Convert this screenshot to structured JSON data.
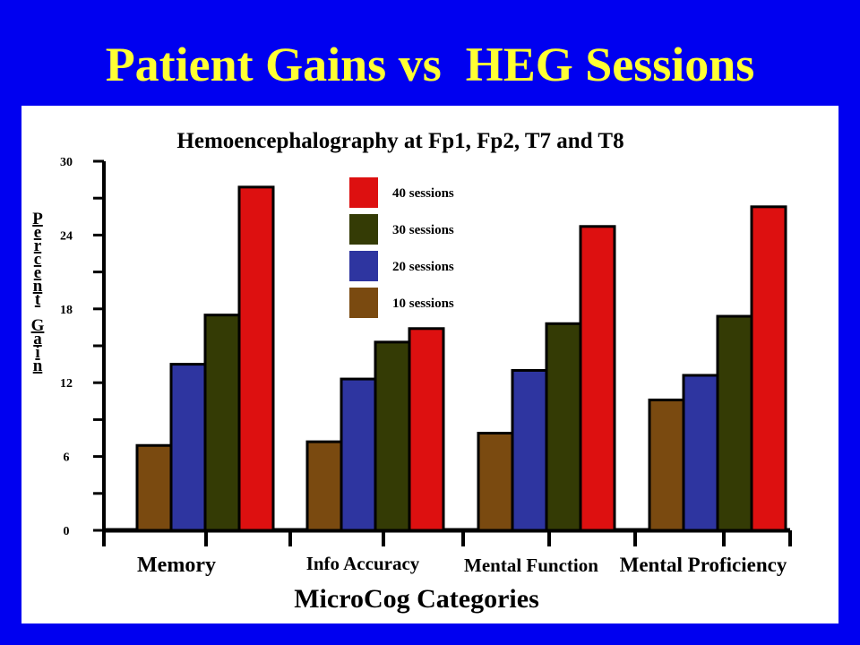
{
  "slide": {
    "title": "Patient Gains vs  HEG Sessions",
    "background_color": "#0000f0",
    "title_color": "#ffff33"
  },
  "chart_data": {
    "type": "bar",
    "title": "Hemoencephalography at Fp1, Fp2, T7 and T8",
    "xlabel": "MicroCog Categories",
    "ylabel": "Percent Gain",
    "ylim": [
      0,
      30
    ],
    "yticks": [
      0,
      6,
      12,
      18,
      24,
      30
    ],
    "grid": false,
    "legend_position": "top-center",
    "categories": [
      "Memory",
      "Info Accuracy",
      "Mental Function",
      "Mental Proficiency"
    ],
    "series": [
      {
        "name": "10 sessions",
        "color": "#7a4a10",
        "values": [
          6.9,
          7.2,
          7.9,
          10.6
        ]
      },
      {
        "name": "20 sessions",
        "color": "#2e35a0",
        "values": [
          13.5,
          12.3,
          13.0,
          12.6
        ]
      },
      {
        "name": "30 sessions",
        "color": "#343b05",
        "values": [
          17.5,
          15.3,
          16.8,
          17.4
        ]
      },
      {
        "name": "40 sessions",
        "color": "#dd1010",
        "values": [
          27.9,
          16.4,
          24.7,
          26.3
        ]
      }
    ]
  }
}
